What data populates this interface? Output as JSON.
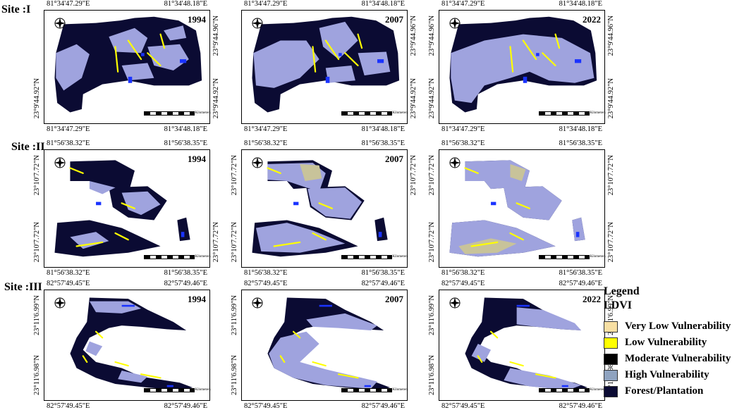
{
  "sites": [
    {
      "label": "Site :I",
      "maps": [
        {
          "year": "1994",
          "top_left": "81°34'47.29\"E",
          "top_right": "81°34'48.18\"E",
          "bottom_left": "81°34'47.29\"E",
          "bottom_right": "81°34'48.18\"E",
          "right_top": "23°9'44.96\"N",
          "right_bottom": "23°9'44.92\"N",
          "left_top": "",
          "left_bottom": "23°9'44.92\"N"
        },
        {
          "year": "2007",
          "top_left": "81°34'47.29\"E",
          "top_right": "81°34'48.18\"E",
          "bottom_left": "81°34'47.29\"E",
          "bottom_right": "81°34'48.18\"E",
          "right_top": "23°9'44.96\"N",
          "right_bottom": "23°9'44.92\"N",
          "left_top": "",
          "left_bottom": ""
        },
        {
          "year": "2022",
          "top_left": "81°34'47.29\"E",
          "top_right": "81°34'48.18\"E",
          "bottom_left": "81°34'47.29\"E",
          "bottom_right": "81°34'48.18\"E",
          "right_top": "23°9'44.96\"N",
          "right_bottom": "23°9'44.92\"N",
          "left_top": "23°9'44.96\"N",
          "left_bottom": "23°9'44.92\"N"
        }
      ]
    },
    {
      "label": "Site :II",
      "maps": [
        {
          "year": "1994",
          "top_left": "81°56'38.32\"E",
          "top_right": "81°56'38.35\"E",
          "bottom_left": "81°56'38.32\"E",
          "bottom_right": "81°56'38.35\"E",
          "right_top": "",
          "right_bottom": "23°10'7.72\"N",
          "left_top": "23°10'7.72\"N",
          "left_bottom": "23°10'7.72\"N"
        },
        {
          "year": "2007",
          "top_left": "81°56'38.32\"E",
          "top_right": "81°56'38.35\"E",
          "bottom_left": "81°56'38.32\"E",
          "bottom_right": "81°56'38.35\"E",
          "right_top": "23°10'7.72\"N",
          "right_bottom": "",
          "left_top": "23°10'7.72\"N",
          "left_bottom": "23°10'7.72\"N"
        },
        {
          "year": "",
          "top_left": "81°56'38.32\"E",
          "top_right": "81°56'38.35\"E",
          "bottom_left": "81°56'38.32\"E",
          "bottom_right": "81°56'38.35\"E",
          "right_top": "23°10'7.72\"N",
          "right_bottom": "23°10'7.72\"N",
          "left_top": "23°10'7.72\"N",
          "left_bottom": "23°10'7.72\"N"
        }
      ]
    },
    {
      "label": "Site :III",
      "maps": [
        {
          "year": "1994",
          "top_left": "82°57'49.45\"E",
          "top_right": "82°57'49.46\"E",
          "bottom_left": "82°57'49.45\"E",
          "bottom_right": "82°57'49.46\"E",
          "right_top": "",
          "right_bottom": "",
          "left_top": "23°11'6.99\"N",
          "left_bottom": "23°11'6.98\"N"
        },
        {
          "year": "2007",
          "top_left": "82°57'49.45\"E",
          "top_right": "82°57'49.46\"E",
          "bottom_left": "82°57'49.45\"E",
          "bottom_right": "82°57'49.46\"E",
          "right_top": "",
          "right_bottom": "",
          "left_top": "23°11'6.99\"N",
          "left_bottom": "23°11'6.98\"N"
        },
        {
          "year": "2022",
          "top_left": "82°57'49.45\"E",
          "top_right": "82°57'49.46\"E",
          "bottom_left": "82°57'49.45\"E",
          "bottom_right": "82°57'49.46\"E",
          "right_top": "23°11'6.99\"N",
          "right_bottom": "23°11'6.98\"N",
          "left_top": "23°11'6.99\"N",
          "left_bottom": "23°11'6.98\"N"
        }
      ]
    }
  ],
  "legend": {
    "title": "Legend",
    "subtitle": "LDVI",
    "items": [
      {
        "label": "Very Low Vulnerability",
        "color": "#f7dfa3"
      },
      {
        "label": "Low Vulnerability",
        "color": "#ffff00"
      },
      {
        "label": "Moderate Vulnerability",
        "color": "#000000"
      },
      {
        "label": "High Vulnerability",
        "color": "#8fa3c0"
      },
      {
        "label": "Forest/Plantation",
        "color": "#0b0b33"
      }
    ]
  },
  "scale_labels": {
    "km": "Kilometers"
  },
  "compass_label": "N",
  "colors": {
    "forest": "#0b0b33",
    "high": "#9fa3de",
    "low": "#ffff00",
    "very_low": "#c8c39a",
    "water": "#1a33ff",
    "moderate": "#000000"
  }
}
